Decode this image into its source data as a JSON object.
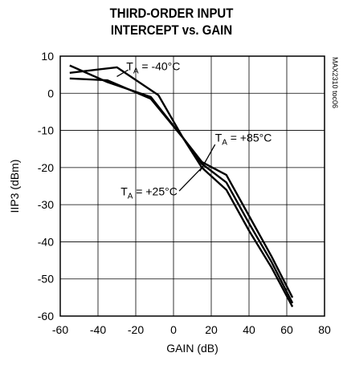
{
  "chart_data": {
    "type": "line",
    "title_lines": [
      "THIRD-ORDER INPUT",
      "INTERCEPT vs. GAIN"
    ],
    "xlabel": "GAIN (dB)",
    "ylabel": "IIP3 (dBm)",
    "xlim": [
      -60,
      80
    ],
    "ylim": [
      -60,
      10
    ],
    "xticks": [
      -60,
      -40,
      -20,
      0,
      20,
      40,
      60,
      80
    ],
    "yticks": [
      10,
      0,
      -10,
      -20,
      -30,
      -40,
      -50,
      -60
    ],
    "grid": true,
    "side_label": "MAX2310 toc06",
    "series": [
      {
        "name": "TA = -40°C",
        "label_main": "T",
        "label_sub": "A",
        "label_rest": " = -40°C",
        "x": [
          -55,
          -30,
          -8,
          5,
          15,
          28,
          40,
          52,
          63
        ],
        "y": [
          5.5,
          7,
          -0.5,
          -12,
          -18.5,
          -22,
          -33,
          -44,
          -55
        ]
      },
      {
        "name": "TA = +25°C",
        "label_main": "T",
        "label_sub": "A",
        "label_rest": " = +25°C",
        "x": [
          -55,
          -35,
          -12,
          5,
          15,
          28,
          40,
          52,
          63
        ],
        "y": [
          4,
          3.5,
          -1.5,
          -12,
          -20,
          -26,
          -37,
          -47,
          -57.5
        ]
      },
      {
        "name": "TA = +85°C",
        "label_main": "T",
        "label_sub": "A",
        "label_rest": " = +85°C",
        "x": [
          -55,
          -35,
          -12,
          5,
          15,
          28,
          40,
          52,
          63
        ],
        "y": [
          7.5,
          3,
          -1,
          -12,
          -19,
          -24,
          -35,
          -45.5,
          -56.5
        ]
      }
    ]
  }
}
